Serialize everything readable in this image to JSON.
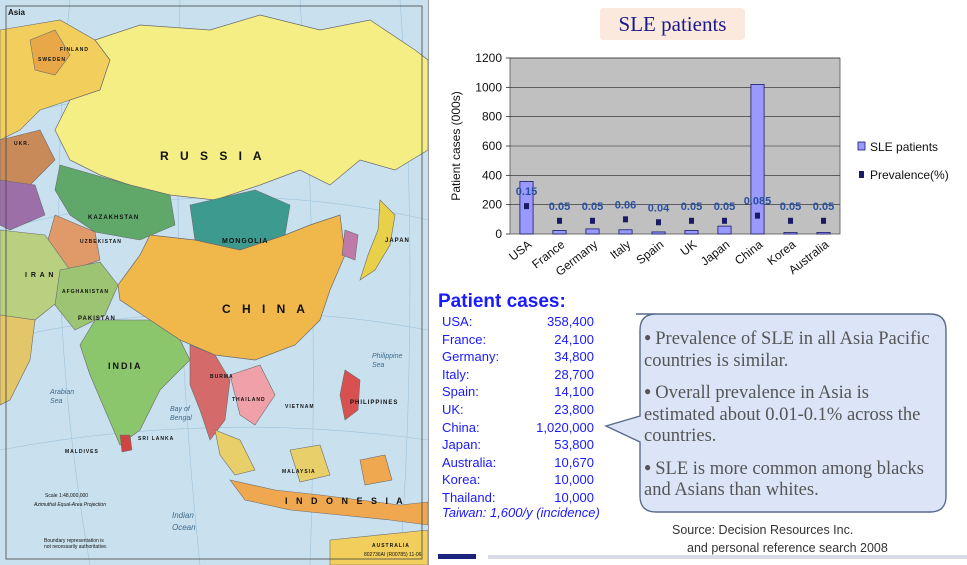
{
  "map": {
    "title": "Asia",
    "labels": {
      "russia": "R U S S I A",
      "china": "C H I N A",
      "india": "INDIA",
      "indonesia": "I N D O N E S I A",
      "mongolia": "MONGOLIA",
      "kazakhstan": "KAZAKHSTAN",
      "iran": "I R A N",
      "pakistan": "PAKISTAN",
      "afghanistan": "AFGHANISTAN",
      "uzbekistan": "UZBEKISTAN",
      "japan": "JAPAN",
      "thailand": "THAILAND",
      "philippines": "PHILIPPINES",
      "sri_lanka": "SRI LANKA",
      "maldives": "MALDIVES",
      "burma": "BURMA",
      "vietnam": "VIETNAM",
      "malaysia": "MALAYSIA",
      "australia": "AUSTRALIA",
      "indian_ocean": "Indian\nOcean",
      "arabian_sea": "Arabian\nSea",
      "bay_of_bengal": "Bay of\nBengal",
      "philippine_sea": "Philippine\nSea",
      "sweden": "SWEDEN",
      "finland": "FINLAND",
      "ukr": "UKR.",
      "scale": "Scale 1:48,000,000",
      "projection": "Azimuthal Equal-Area Projection",
      "boundary_note": "Boundary representation is\nnot necessarily authoritative.",
      "code": "802736AI (R00785) 11-06"
    }
  },
  "chart_title": "SLE patients",
  "chart_data": {
    "type": "bar",
    "categories": [
      "USA",
      "France",
      "Germany",
      "Italy",
      "Spain",
      "UK",
      "Japan",
      "China",
      "Korea",
      "Australia"
    ],
    "series": [
      {
        "name": "SLE patients",
        "kind": "bar",
        "values": [
          358.4,
          24.1,
          34.8,
          28.7,
          14.1,
          23.8,
          53.8,
          1020,
          10,
          10.67
        ]
      },
      {
        "name": "Prevalence(%)",
        "kind": "marker",
        "values": [
          0.15,
          0.05,
          0.05,
          0.06,
          0.04,
          0.05,
          0.05,
          0.085,
          0.05,
          0.05
        ],
        "labels": [
          "0.15",
          "0.05",
          "0.05",
          "0.06",
          "0.04",
          "0.05",
          "0.05",
          "0.085",
          "0.05",
          "0.05"
        ]
      }
    ],
    "ylabel": "Patient cases (000s)",
    "ylim": [
      0,
      1200
    ],
    "yticks": [
      0,
      200,
      400,
      600,
      800,
      1000,
      1200
    ],
    "legend": "right",
    "grid": true,
    "colors": {
      "bar": "#9999ff",
      "bar_edge": "#1a1a66",
      "marker": "#1a1a66",
      "plot_bg": "#c0c0c0",
      "label": "#2b4fa0"
    }
  },
  "patient_cases": {
    "heading": "Patient cases:",
    "rows": [
      {
        "country": "USA:",
        "value": "358,400"
      },
      {
        "country": "France:",
        "value": "24,100"
      },
      {
        "country": "Germany:",
        "value": "34,800"
      },
      {
        "country": "Italy:",
        "value": "28,700"
      },
      {
        "country": "Spain:",
        "value": "14,100"
      },
      {
        "country": "UK:",
        "value": "23,800"
      },
      {
        "country": "China:",
        "value": "1,020,000"
      },
      {
        "country": "Japan:",
        "value": "53,800"
      },
      {
        "country": "Australia:",
        "value": "10,670"
      },
      {
        "country": "Korea:",
        "value": "10,000"
      },
      {
        "country": "Thailand:",
        "value": "10,000"
      }
    ],
    "note": "Taiwan: 1,600/y (incidence)"
  },
  "callout": {
    "items": [
      "Prevalence of SLE in all Asia Pacific countries is similar.",
      "Overall prevalence in Asia is estimated about 0.01-0.1% across the countries.",
      "SLE is more common among blacks and Asians than whites."
    ]
  },
  "source": {
    "line1": "Source: Decision Resources Inc.",
    "line2": "and personal reference search 2008"
  }
}
